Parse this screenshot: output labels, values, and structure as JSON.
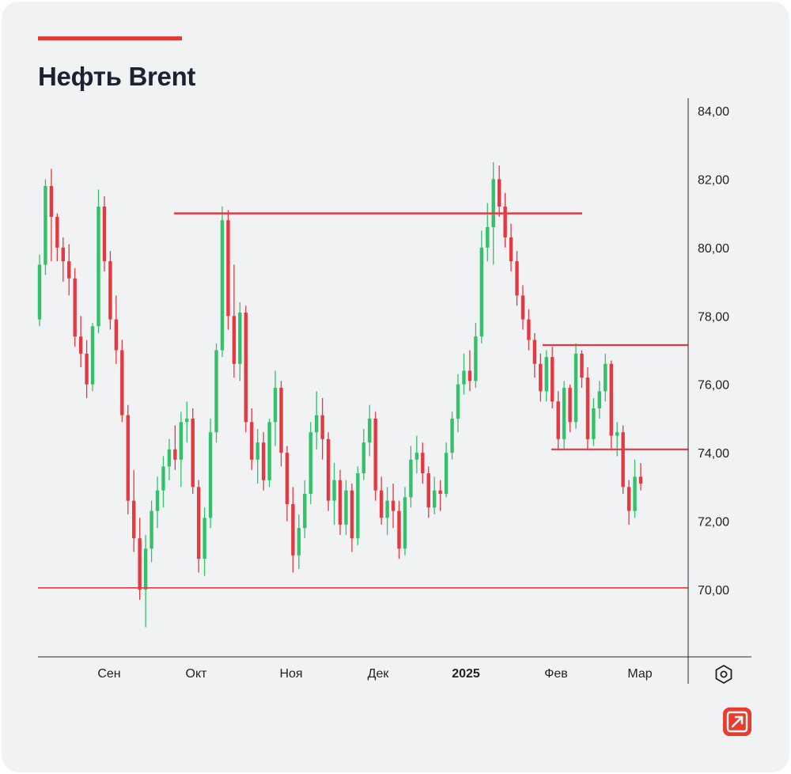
{
  "header": {
    "title": "Нефть Brent"
  },
  "icons": {
    "settings": "settings-hexagon-icon",
    "logo": "brand-arrow-logo-icon"
  },
  "colors": {
    "up": "#33c16a",
    "down": "#e53941",
    "level": "#e53941",
    "accent": "#e53935"
  },
  "chart_data": {
    "type": "candlestick",
    "title": "Нефть Brent",
    "y_ticks": [
      "84,00",
      "82,00",
      "80,00",
      "78,00",
      "76,00",
      "74,00",
      "72,00",
      "70,00"
    ],
    "x_ticks": [
      {
        "label": "Сен",
        "bold": false
      },
      {
        "label": "Окт",
        "bold": false
      },
      {
        "label": "Ноя",
        "bold": false
      },
      {
        "label": "Дек",
        "bold": false
      },
      {
        "label": "2025",
        "bold": true
      },
      {
        "label": "Фев",
        "bold": false
      },
      {
        "label": "Мар",
        "bold": false
      }
    ],
    "ylim": [
      68.0,
      84.5
    ],
    "horizontal_levels": [
      81.0,
      77.15,
      74.1,
      70.05
    ],
    "ohlc": [
      [
        77.9,
        79.8,
        77.7,
        79.5
      ],
      [
        79.5,
        82.0,
        79.2,
        81.8
      ],
      [
        81.8,
        82.3,
        79.6,
        80.9
      ],
      [
        80.9,
        81.0,
        79.6,
        80.0
      ],
      [
        80.0,
        80.3,
        79.0,
        79.6
      ],
      [
        79.6,
        80.1,
        78.6,
        79.1
      ],
      [
        79.1,
        79.4,
        77.1,
        77.4
      ],
      [
        77.4,
        78.0,
        76.5,
        76.9
      ],
      [
        76.9,
        77.3,
        75.6,
        76.0
      ],
      [
        76.0,
        77.8,
        75.8,
        77.7
      ],
      [
        77.7,
        81.7,
        77.5,
        81.2
      ],
      [
        81.2,
        81.5,
        79.3,
        79.6
      ],
      [
        79.6,
        79.9,
        77.6,
        77.9
      ],
      [
        77.9,
        78.6,
        76.6,
        77.0
      ],
      [
        77.0,
        77.3,
        74.9,
        75.1
      ],
      [
        75.1,
        75.4,
        72.2,
        72.6
      ],
      [
        72.6,
        73.5,
        71.1,
        71.5
      ],
      [
        71.5,
        72.1,
        69.7,
        70.0
      ],
      [
        70.0,
        71.6,
        68.9,
        71.2
      ],
      [
        71.2,
        72.6,
        70.8,
        72.3
      ],
      [
        72.3,
        73.3,
        71.8,
        72.9
      ],
      [
        72.9,
        73.9,
        72.4,
        73.6
      ],
      [
        73.6,
        74.4,
        73.2,
        74.1
      ],
      [
        74.1,
        74.8,
        73.5,
        73.8
      ],
      [
        73.8,
        75.2,
        73.0,
        74.9
      ],
      [
        74.9,
        75.5,
        74.3,
        75.0
      ],
      [
        75.0,
        75.3,
        72.8,
        73.0
      ],
      [
        73.0,
        73.2,
        70.5,
        70.9
      ],
      [
        70.9,
        72.4,
        70.4,
        72.1
      ],
      [
        72.1,
        75.0,
        71.8,
        74.6
      ],
      [
        74.6,
        77.2,
        74.3,
        77.0
      ],
      [
        77.0,
        81.2,
        76.8,
        80.8
      ],
      [
        80.8,
        81.1,
        77.6,
        78.0
      ],
      [
        78.0,
        79.5,
        76.2,
        76.6
      ],
      [
        76.6,
        78.4,
        76.1,
        78.1
      ],
      [
        78.1,
        78.3,
        74.6,
        74.9
      ],
      [
        74.9,
        75.3,
        73.5,
        73.8
      ],
      [
        73.8,
        74.7,
        73.1,
        74.3
      ],
      [
        74.3,
        74.6,
        72.9,
        73.2
      ],
      [
        73.2,
        75.0,
        73.0,
        74.9
      ],
      [
        74.9,
        76.4,
        74.2,
        75.9
      ],
      [
        75.9,
        76.1,
        73.6,
        74.0
      ],
      [
        74.0,
        74.2,
        72.0,
        72.5
      ],
      [
        72.5,
        73.0,
        70.5,
        71.0
      ],
      [
        71.0,
        72.2,
        70.6,
        71.8
      ],
      [
        71.8,
        73.2,
        71.5,
        72.8
      ],
      [
        72.8,
        74.9,
        72.5,
        74.6
      ],
      [
        74.6,
        75.8,
        74.1,
        75.1
      ],
      [
        75.1,
        75.6,
        73.8,
        74.4
      ],
      [
        74.4,
        74.6,
        72.3,
        72.6
      ],
      [
        72.6,
        73.7,
        71.9,
        73.2
      ],
      [
        73.2,
        73.5,
        71.6,
        71.9
      ],
      [
        71.9,
        73.2,
        71.6,
        72.9
      ],
      [
        72.9,
        73.1,
        71.1,
        71.5
      ],
      [
        71.5,
        73.6,
        71.3,
        73.4
      ],
      [
        73.4,
        74.7,
        73.2,
        74.3
      ],
      [
        74.3,
        75.4,
        73.9,
        75.0
      ],
      [
        75.0,
        75.2,
        72.6,
        72.9
      ],
      [
        72.9,
        73.3,
        71.9,
        72.1
      ],
      [
        72.1,
        73.0,
        71.6,
        72.6
      ],
      [
        72.6,
        73.1,
        71.8,
        72.3
      ],
      [
        72.3,
        72.6,
        70.9,
        71.2
      ],
      [
        71.2,
        73.0,
        71.0,
        72.7
      ],
      [
        72.7,
        74.2,
        72.4,
        73.8
      ],
      [
        73.8,
        74.5,
        73.4,
        74.0
      ],
      [
        74.0,
        74.3,
        73.1,
        73.4
      ],
      [
        73.4,
        73.6,
        72.1,
        72.4
      ],
      [
        72.4,
        73.3,
        72.2,
        72.9
      ],
      [
        72.9,
        73.2,
        72.3,
        72.8
      ],
      [
        72.8,
        74.3,
        72.7,
        74.0
      ],
      [
        74.0,
        75.2,
        73.8,
        75.0
      ],
      [
        75.0,
        76.3,
        74.6,
        76.0
      ],
      [
        76.0,
        76.9,
        75.7,
        76.4
      ],
      [
        76.4,
        77.0,
        75.8,
        76.1
      ],
      [
        76.1,
        77.8,
        75.9,
        77.4
      ],
      [
        77.4,
        80.5,
        77.2,
        80.0
      ],
      [
        80.0,
        81.3,
        79.6,
        80.6
      ],
      [
        80.6,
        82.5,
        79.5,
        82.0
      ],
      [
        82.0,
        82.4,
        80.9,
        81.2
      ],
      [
        81.2,
        81.6,
        80.0,
        80.3
      ],
      [
        80.3,
        80.7,
        79.3,
        79.6
      ],
      [
        79.6,
        79.9,
        78.3,
        78.6
      ],
      [
        78.6,
        78.9,
        77.6,
        77.9
      ],
      [
        77.9,
        78.2,
        77.0,
        77.3
      ],
      [
        77.3,
        77.5,
        76.2,
        76.6
      ],
      [
        76.6,
        76.9,
        75.5,
        75.8
      ],
      [
        75.8,
        77.0,
        75.5,
        76.8
      ],
      [
        76.8,
        77.1,
        75.3,
        75.5
      ],
      [
        75.5,
        75.8,
        74.1,
        74.4
      ],
      [
        74.4,
        76.1,
        74.1,
        75.9
      ],
      [
        75.9,
        76.0,
        74.6,
        74.9
      ],
      [
        74.9,
        77.2,
        74.7,
        76.9
      ],
      [
        76.9,
        77.0,
        75.9,
        76.2
      ],
      [
        76.2,
        76.5,
        74.1,
        74.4
      ],
      [
        74.4,
        75.6,
        74.2,
        75.3
      ],
      [
        75.3,
        76.1,
        75.0,
        75.8
      ],
      [
        75.8,
        76.9,
        75.5,
        76.6
      ],
      [
        76.6,
        76.7,
        74.1,
        74.5
      ],
      [
        74.5,
        74.9,
        73.9,
        74.6
      ],
      [
        74.6,
        74.8,
        72.8,
        73.0
      ],
      [
        73.0,
        73.2,
        71.9,
        72.3
      ],
      [
        72.3,
        73.8,
        72.1,
        73.3
      ],
      [
        73.3,
        73.7,
        72.9,
        73.1
      ]
    ]
  }
}
